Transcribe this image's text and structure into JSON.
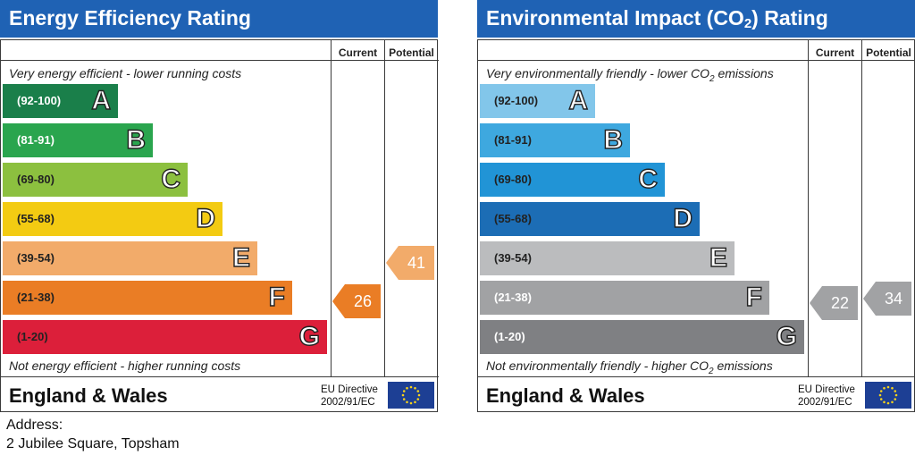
{
  "charts": [
    {
      "title_main": "Environmental Impact (CO",
      "title_sub": "2",
      "title_tail": ") Rating",
      "col_current": "Current",
      "col_potential": "Potential",
      "top_caption_main": "Very environmentally friendly - lower CO",
      "top_caption_sub": "2",
      "top_caption_tail": " emissions",
      "bottom_caption_main": "Not environmentally friendly - higher CO",
      "bottom_caption_sub": "2",
      "bottom_caption_tail": " emissions",
      "country": "England & Wales",
      "eu_line1": "EU Directive",
      "eu_line2": "2002/91/EC"
    },
    {
      "title_main": "Energy Efficiency Rating",
      "col_current": "Current",
      "col_potential": "Potential",
      "top_caption_main": "Very energy efficient - lower running costs",
      "bottom_caption_main": "Not energy efficient - higher running costs",
      "country": "England & Wales",
      "eu_line1": "EU Directive",
      "eu_line2": "2002/91/EC"
    }
  ],
  "chart_data": [
    {
      "type": "bar",
      "title": "Energy Efficiency Rating",
      "categories": [
        "A",
        "B",
        "C",
        "D",
        "E",
        "F",
        "G"
      ],
      "ranges": [
        "(92-100)",
        "(81-91)",
        "(69-80)",
        "(55-68)",
        "(39-54)",
        "(21-38)",
        "(1-20)"
      ],
      "colors": [
        "#1a7f4a",
        "#2aa54e",
        "#8cc03f",
        "#f3cb12",
        "#f2ab6a",
        "#ea7d25",
        "#dc1f3a"
      ],
      "range_text_colors": [
        "#ffffff",
        "#ffffff",
        "#222222",
        "#222222",
        "#222222",
        "#222222",
        "#222222"
      ],
      "current": 26,
      "current_color": "#ea7d25",
      "potential": 41,
      "potential_color": "#f2ab6a"
    },
    {
      "type": "bar",
      "title": "Environmental Impact (CO2) Rating",
      "categories": [
        "A",
        "B",
        "C",
        "D",
        "E",
        "F",
        "G"
      ],
      "ranges": [
        "(92-100)",
        "(81-91)",
        "(69-80)",
        "(55-68)",
        "(39-54)",
        "(21-38)",
        "(1-20)"
      ],
      "colors": [
        "#82c6ea",
        "#3ea8df",
        "#2194d6",
        "#1c6db5",
        "#bbbcbe",
        "#a1a2a4",
        "#7f8083"
      ],
      "range_text_colors": [
        "#222222",
        "#222222",
        "#222222",
        "#222222",
        "#222222",
        "#ffffff",
        "#ffffff"
      ],
      "current": 22,
      "current_color": "#a1a2a4",
      "potential": 34,
      "potential_color": "#a1a2a4"
    }
  ],
  "address": {
    "label": "Address:",
    "line": "2 Jubilee Square, Topsham"
  }
}
